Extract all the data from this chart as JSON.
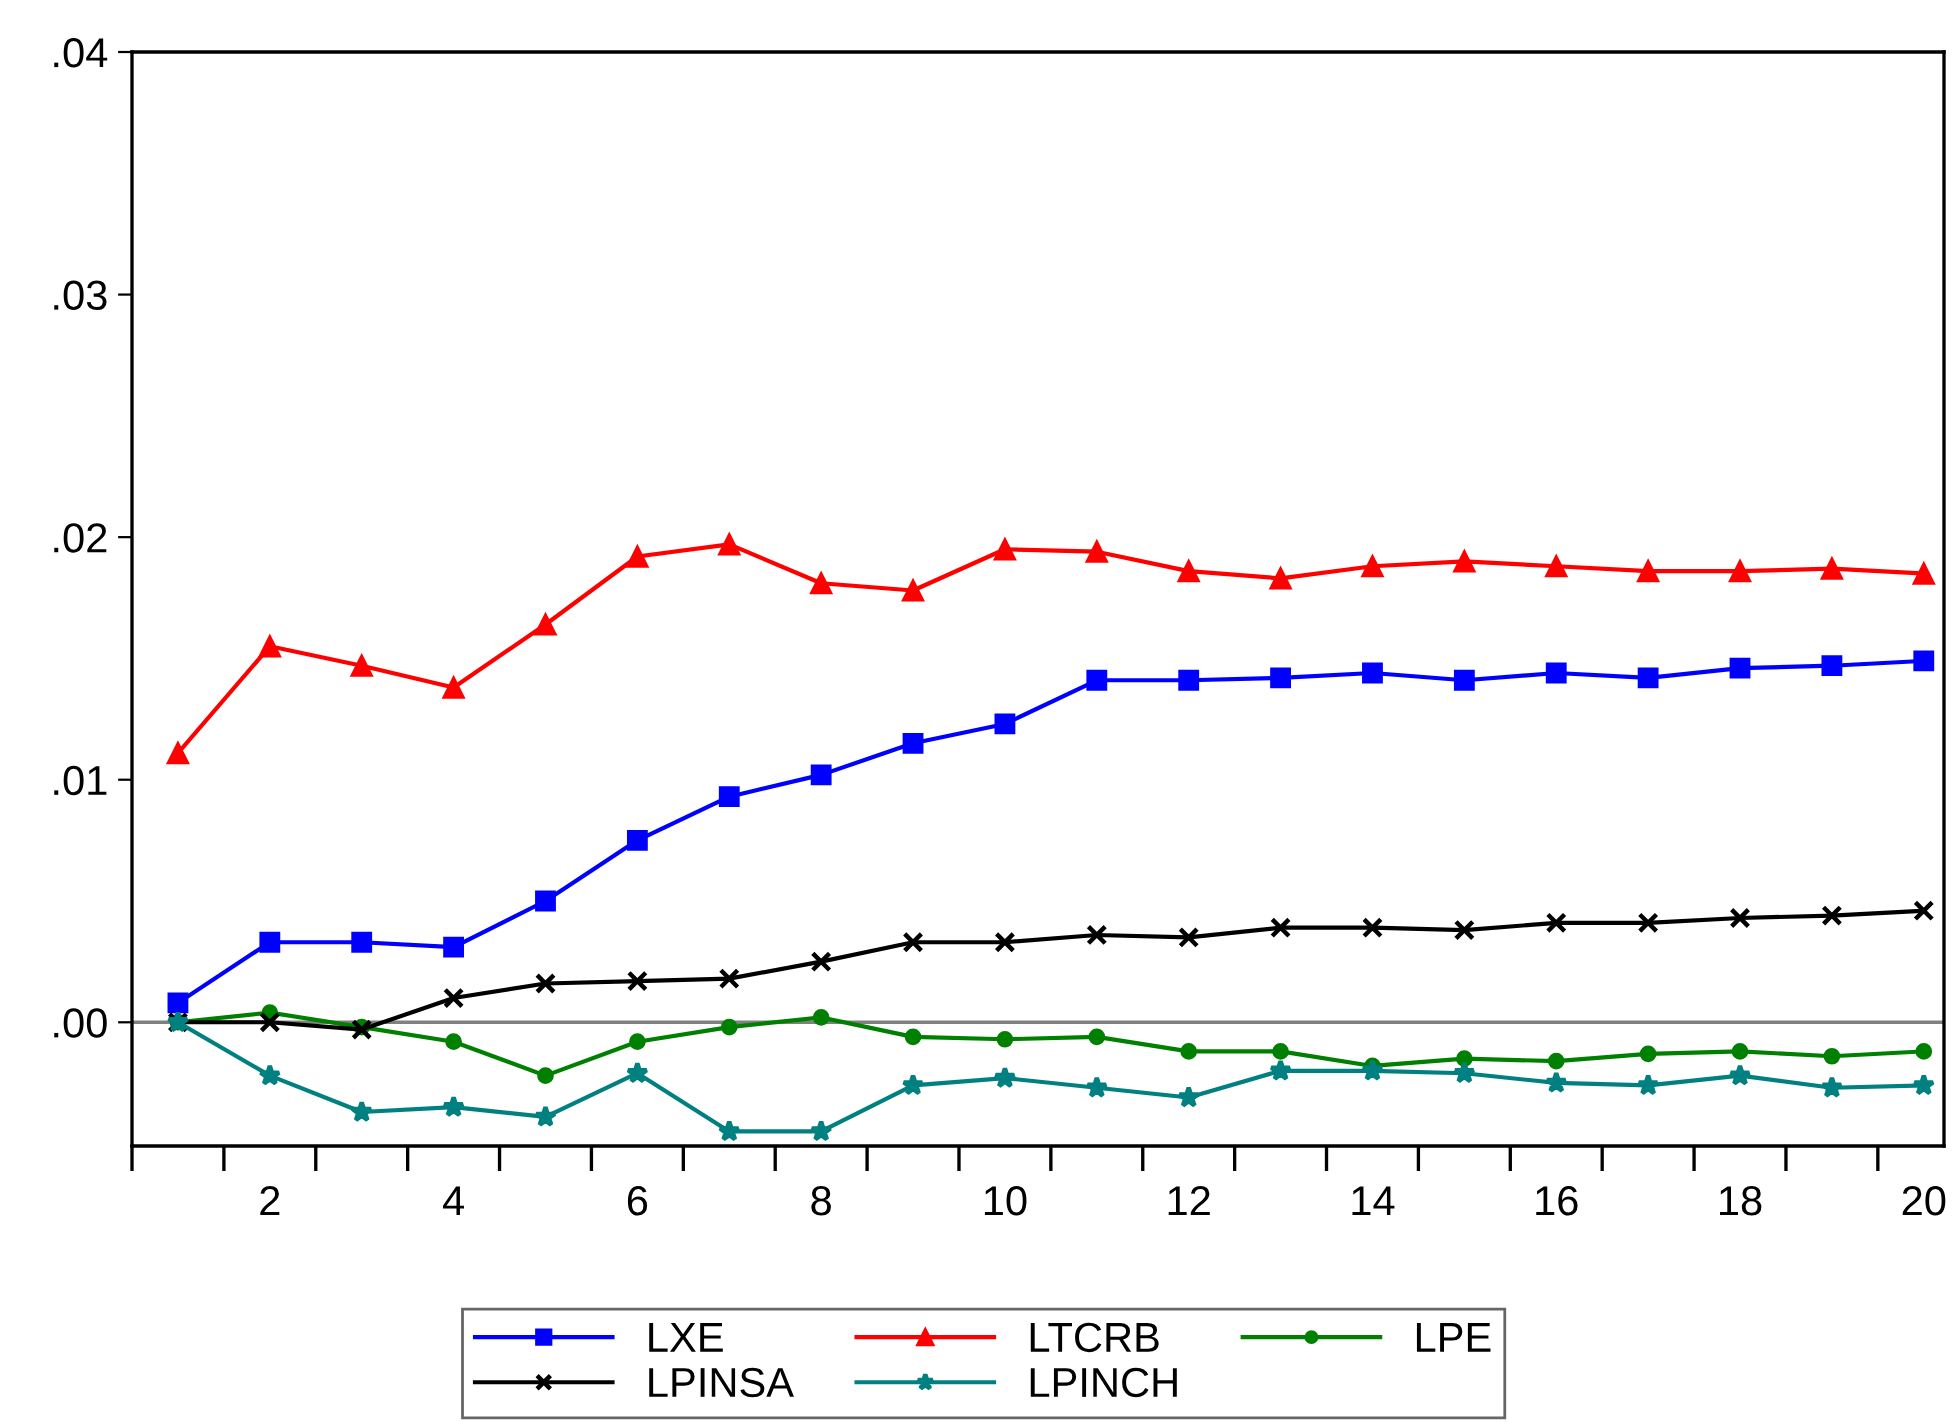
{
  "chart_data": {
    "type": "line",
    "x": [
      1,
      2,
      3,
      4,
      5,
      6,
      7,
      8,
      9,
      10,
      11,
      12,
      13,
      14,
      15,
      16,
      17,
      18,
      19,
      20
    ],
    "series": [
      {
        "name": "LXE",
        "color": "#0000ff",
        "marker": "square",
        "values": [
          0.0008,
          0.0033,
          0.0033,
          0.0031,
          0.005,
          0.0075,
          0.0093,
          0.0102,
          0.0115,
          0.0123,
          0.0141,
          0.0141,
          0.0142,
          0.0144,
          0.0141,
          0.0144,
          0.0142,
          0.0146,
          0.0147,
          0.0149
        ]
      },
      {
        "name": "LTCRB",
        "color": "#ff0000",
        "marker": "triangle",
        "values": [
          0.0111,
          0.0155,
          0.0147,
          0.0138,
          0.0164,
          0.0192,
          0.0197,
          0.0181,
          0.0178,
          0.0195,
          0.0194,
          0.0186,
          0.0183,
          0.0188,
          0.019,
          0.0188,
          0.0186,
          0.0186,
          0.0187,
          0.0185
        ]
      },
      {
        "name": "LPE",
        "color": "#008000",
        "marker": "circle",
        "values": [
          0.0,
          0.0004,
          -0.0002,
          -0.0008,
          -0.0022,
          -0.0008,
          -0.0002,
          0.0002,
          -0.0006,
          -0.0007,
          -0.0006,
          -0.0012,
          -0.0012,
          -0.0018,
          -0.0015,
          -0.0016,
          -0.0013,
          -0.0012,
          -0.0014,
          -0.0012
        ]
      },
      {
        "name": "LPINSA",
        "color": "#000000",
        "marker": "cross",
        "values": [
          0.0,
          0.0,
          -0.0003,
          0.001,
          0.0016,
          0.0017,
          0.0018,
          0.0025,
          0.0033,
          0.0033,
          0.0036,
          0.0035,
          0.0039,
          0.0039,
          0.0038,
          0.0041,
          0.0041,
          0.0043,
          0.0044,
          0.0046
        ]
      },
      {
        "name": "LPINCH",
        "color": "#008080",
        "marker": "star",
        "values": [
          0.0,
          -0.0022,
          -0.0037,
          -0.0035,
          -0.0039,
          -0.0021,
          -0.0045,
          -0.0045,
          -0.0026,
          -0.0023,
          -0.0027,
          -0.0031,
          -0.002,
          -0.002,
          -0.0021,
          -0.0025,
          -0.0026,
          -0.0022,
          -0.0027,
          -0.0026
        ]
      }
    ],
    "xlim": [
      0.5,
      20.22
    ],
    "xticks": [
      {
        "value": 0.5,
        "label": null
      },
      {
        "value": 1.5,
        "label": null
      },
      {
        "value": 2,
        "label": "2"
      },
      {
        "value": 2.5,
        "label": null
      },
      {
        "value": 3.5,
        "label": null
      },
      {
        "value": 4,
        "label": "4"
      },
      {
        "value": 4.5,
        "label": null
      },
      {
        "value": 5.5,
        "label": null
      },
      {
        "value": 6,
        "label": "6"
      },
      {
        "value": 6.5,
        "label": null
      },
      {
        "value": 7.5,
        "label": null
      },
      {
        "value": 8,
        "label": "8"
      },
      {
        "value": 8.5,
        "label": null
      },
      {
        "value": 9.5,
        "label": null
      },
      {
        "value": 10,
        "label": "10"
      },
      {
        "value": 10.5,
        "label": null
      },
      {
        "value": 11.5,
        "label": null
      },
      {
        "value": 12,
        "label": "12"
      },
      {
        "value": 12.5,
        "label": null
      },
      {
        "value": 13.5,
        "label": null
      },
      {
        "value": 14,
        "label": "14"
      },
      {
        "value": 14.5,
        "label": null
      },
      {
        "value": 15.5,
        "label": null
      },
      {
        "value": 16,
        "label": "16"
      },
      {
        "value": 16.5,
        "label": null
      },
      {
        "value": 17.5,
        "label": null
      },
      {
        "value": 18,
        "label": "18"
      },
      {
        "value": 18.5,
        "label": null
      },
      {
        "value": 19.5,
        "label": null
      },
      {
        "value": 20,
        "label": "20"
      }
    ],
    "ylim": [
      -0.0051,
      0.04
    ],
    "yticks": [
      {
        "value": 0,
        "label": ".00"
      },
      {
        "value": 0.01,
        "label": ".01"
      },
      {
        "value": 0.02,
        "label": ".02"
      },
      {
        "value": 0.03,
        "label": ".03"
      },
      {
        "value": 0.04,
        "label": ".04"
      }
    ],
    "ref_lines": [
      {
        "axis": "y",
        "value": 0,
        "color": "#808080"
      }
    ],
    "grid": false,
    "legend": "bottom",
    "line_style": "solid"
  }
}
